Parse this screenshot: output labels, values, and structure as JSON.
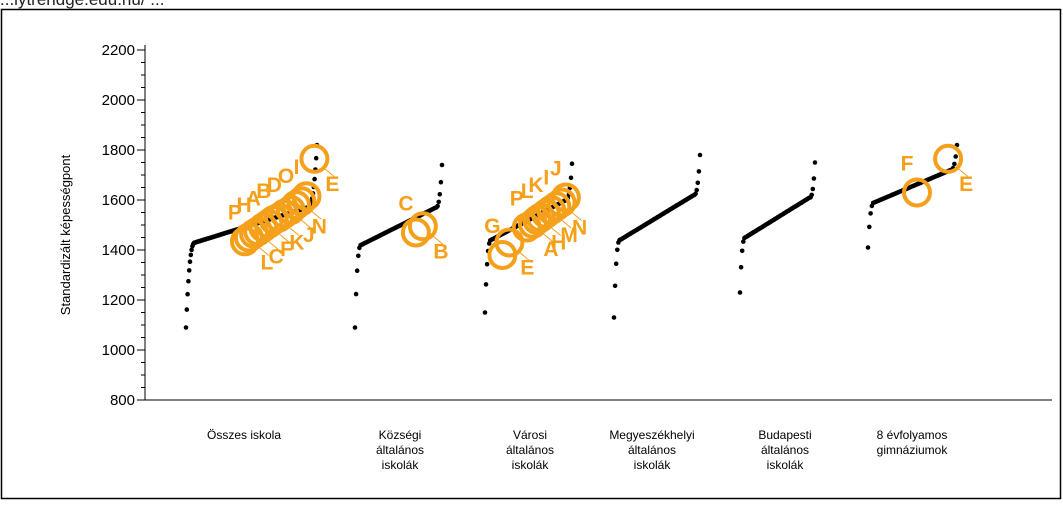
{
  "header": {
    "caption": "...lytrendge.edu.hu/ ..."
  },
  "chart_data": {
    "type": "scatter",
    "title": "",
    "xlabel": "",
    "ylabel": "Standardizált képességpont",
    "ylim": [
      800,
      2200
    ],
    "yticks": [
      800,
      1000,
      1200,
      1400,
      1600,
      1800,
      2000,
      2200
    ],
    "grid": false,
    "legend": "none",
    "colors": {
      "points": "#000000",
      "highlight": "#f5a01a",
      "frame": "#000000"
    },
    "categories": [
      {
        "lines": [
          "Összes iskola"
        ]
      },
      {
        "lines": [
          "Községi",
          "általános",
          "iskolák"
        ]
      },
      {
        "lines": [
          "Városi",
          "általános",
          "iskolák"
        ]
      },
      {
        "lines": [
          "Megyeszékhelyi",
          "általános",
          "iskolák"
        ]
      },
      {
        "lines": [
          "Budapesti",
          "általános",
          "iskolák"
        ]
      },
      {
        "lines": [
          "8 évfolyamos",
          "gimnáziumok"
        ]
      }
    ],
    "distributions": [
      {
        "min": 1090,
        "low": 1430,
        "high": 1570,
        "max": 1820
      },
      {
        "min": 1090,
        "low": 1420,
        "high": 1570,
        "max": 1740
      },
      {
        "min": 1150,
        "low": 1440,
        "high": 1600,
        "max": 1745
      },
      {
        "min": 1130,
        "low": 1440,
        "high": 1620,
        "max": 1780
      },
      {
        "min": 1230,
        "low": 1450,
        "high": 1610,
        "max": 1750
      },
      {
        "min": 1410,
        "low": 1590,
        "high": 1720,
        "max": 1820
      }
    ],
    "highlights": [
      [
        {
          "label": "P",
          "pos": 0.45,
          "value": 1435
        },
        {
          "label": "L",
          "pos": 0.48,
          "value": 1450
        },
        {
          "label": "H",
          "pos": 0.52,
          "value": 1465
        },
        {
          "label": "C",
          "pos": 0.55,
          "value": 1475
        },
        {
          "label": "A",
          "pos": 0.59,
          "value": 1490
        },
        {
          "label": "F",
          "pos": 0.63,
          "value": 1505
        },
        {
          "label": "B",
          "pos": 0.67,
          "value": 1520
        },
        {
          "label": "K",
          "pos": 0.71,
          "value": 1530
        },
        {
          "label": "D",
          "pos": 0.75,
          "value": 1545
        },
        {
          "label": "J",
          "pos": 0.8,
          "value": 1560
        },
        {
          "label": "O",
          "pos": 0.84,
          "value": 1580
        },
        {
          "label": "N",
          "pos": 0.88,
          "value": 1595
        },
        {
          "label": "I",
          "pos": 0.92,
          "value": 1615
        },
        {
          "label": "E",
          "pos": 0.98,
          "value": 1765
        }
      ],
      [
        {
          "label": "C",
          "pos": 0.7,
          "value": 1470
        },
        {
          "label": "B",
          "pos": 0.78,
          "value": 1495
        }
      ],
      [
        {
          "label": "G",
          "pos": 0.2,
          "value": 1380
        },
        {
          "label": "E",
          "pos": 0.28,
          "value": 1430
        },
        {
          "label": "P",
          "pos": 0.48,
          "value": 1490
        },
        {
          "label": "A",
          "pos": 0.55,
          "value": 1505
        },
        {
          "label": "L",
          "pos": 0.6,
          "value": 1520
        },
        {
          "label": "H",
          "pos": 0.64,
          "value": 1530
        },
        {
          "label": "K",
          "pos": 0.7,
          "value": 1545
        },
        {
          "label": "M",
          "pos": 0.76,
          "value": 1560
        },
        {
          "label": "I",
          "pos": 0.82,
          "value": 1575
        },
        {
          "label": "N",
          "pos": 0.88,
          "value": 1590
        },
        {
          "label": "J",
          "pos": 0.93,
          "value": 1610
        }
      ],
      [],
      [],
      [
        {
          "label": "F",
          "pos": 0.55,
          "value": 1630
        },
        {
          "label": "E",
          "pos": 0.9,
          "value": 1765
        }
      ]
    ]
  }
}
